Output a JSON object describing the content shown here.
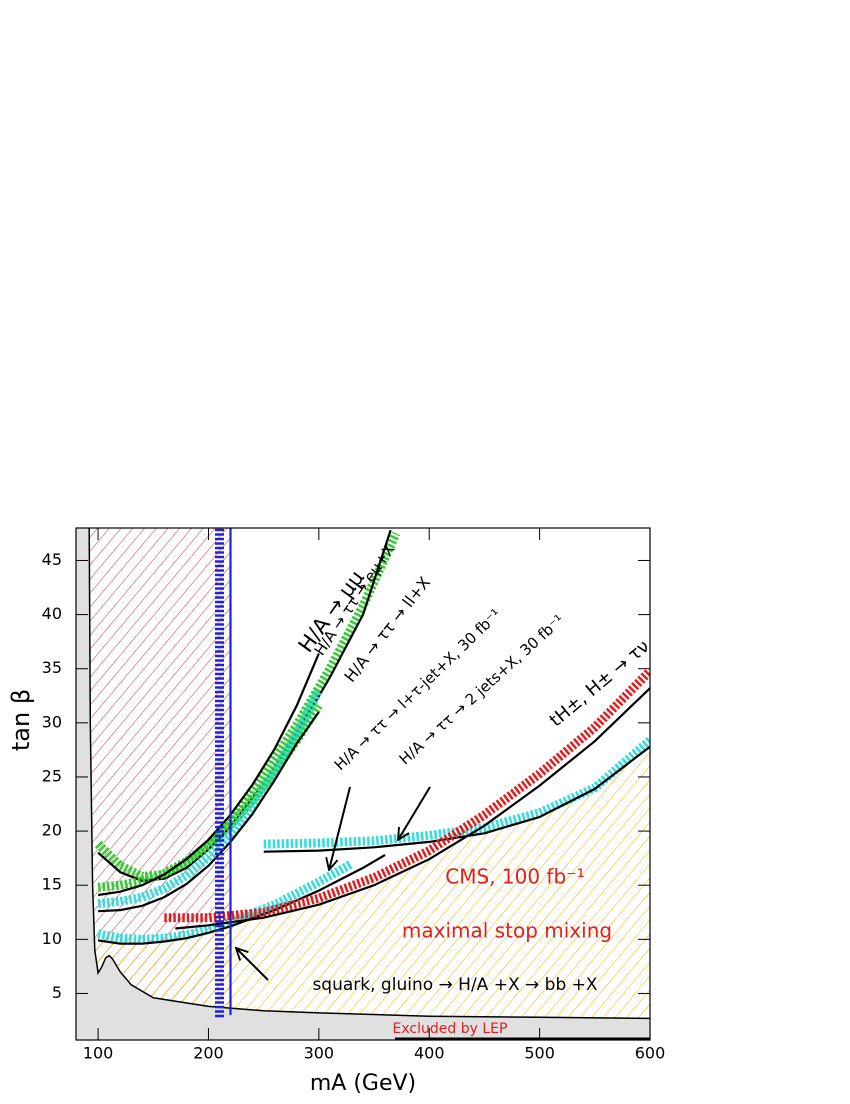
{
  "chart_data": {
    "type": "line",
    "x_label": "mA (GeV)",
    "y_label": "tan β",
    "xlim": [
      80,
      600
    ],
    "ylim": [
      0.7,
      48
    ],
    "xticks": [
      100,
      200,
      300,
      400,
      500,
      600
    ],
    "yticks": [
      5,
      10,
      15,
      20,
      25,
      30,
      35,
      40,
      45
    ],
    "excluded_region": {
      "label": "Excluded by LEP",
      "color": "#e0e0e0",
      "x": [
        92,
        93,
        95,
        97,
        100,
        103,
        107,
        110,
        113,
        120,
        130,
        150,
        200,
        250,
        300,
        400,
        500,
        600
      ],
      "y": [
        48,
        30,
        15,
        9,
        6.9,
        7.4,
        8.3,
        8.5,
        8.2,
        7,
        5.8,
        4.6,
        3.8,
        3.4,
        3.2,
        2.9,
        2.8,
        2.7
      ]
    },
    "hatch_colors": {
      "low_mass": "#cc3355",
      "discovery": "#f0b000"
    },
    "series": [
      {
        "color": "#33cc33",
        "style": "band",
        "x": [
          100,
          120,
          140,
          160,
          180,
          200,
          220,
          250,
          280,
          310,
          340,
          370
        ],
        "y": [
          18.8,
          16.8,
          15.8,
          16,
          17,
          18.8,
          21,
          25.2,
          29.8,
          35,
          40.8,
          47.5
        ]
      },
      {
        "color": "#000000",
        "style": "line",
        "x": [
          100,
          120,
          140,
          160,
          180,
          200,
          220,
          250,
          280,
          310,
          340,
          365
        ],
        "y": [
          18,
          16.2,
          15.4,
          15.6,
          16.6,
          18.3,
          20.4,
          24.4,
          29,
          34.2,
          40,
          47.8
        ]
      },
      {
        "color": "#33cc33",
        "style": "band",
        "x": [
          100,
          120,
          140,
          160,
          180,
          200,
          220,
          240,
          260,
          280,
          300
        ],
        "y": [
          14.8,
          15,
          15.4,
          16.1,
          17.2,
          18.7,
          20.6,
          22.9,
          25.5,
          28.4,
          31.6
        ]
      },
      {
        "color": "#33dddd",
        "style": "band",
        "x": [
          100,
          120,
          140,
          160,
          180,
          200,
          220,
          240,
          260,
          280,
          300
        ],
        "y": [
          13.3,
          13.5,
          13.9,
          14.7,
          15.9,
          17.6,
          19.7,
          22.3,
          25.4,
          29,
          33
        ]
      },
      {
        "color": "#000000",
        "style": "line",
        "x": [
          100,
          120,
          140,
          160,
          180,
          200,
          220,
          240,
          260,
          280,
          300
        ],
        "y": [
          14.1,
          14.4,
          15,
          16,
          17.4,
          19.2,
          21.5,
          24.3,
          27.6,
          31.6,
          36.4
        ]
      },
      {
        "color": "#000000",
        "style": "line",
        "x": [
          100,
          120,
          140,
          160,
          180,
          200,
          220,
          240,
          260,
          280,
          300
        ],
        "y": [
          12.6,
          12.7,
          13.1,
          13.9,
          15.1,
          16.8,
          19,
          21.6,
          24.7,
          28.1,
          31
        ]
      },
      {
        "color": "#33dddd",
        "style": "band",
        "x": [
          100,
          120,
          140,
          160,
          180,
          200,
          220,
          260,
          300,
          330
        ],
        "y": [
          10.5,
          10.1,
          10,
          10.1,
          10.4,
          10.9,
          11.6,
          13.2,
          15.3,
          17
        ]
      },
      {
        "color": "#000000",
        "style": "line",
        "x": [
          100,
          120,
          140,
          160,
          180,
          200,
          220,
          260,
          300,
          340,
          360
        ],
        "y": [
          9.9,
          9.6,
          9.6,
          9.8,
          10.1,
          10.6,
          11.2,
          12.7,
          14.5,
          16.6,
          17.8
        ]
      },
      {
        "color": "#33dddd",
        "style": "band",
        "x": [
          250,
          300,
          350,
          400,
          450,
          500,
          550,
          600
        ],
        "y": [
          18.8,
          18.9,
          19.1,
          19.6,
          20.3,
          21.7,
          24,
          28.4
        ]
      },
      {
        "color": "#000000",
        "style": "line",
        "x": [
          250,
          300,
          350,
          400,
          450,
          500,
          550,
          600
        ],
        "y": [
          18.1,
          18.2,
          18.5,
          19,
          19.8,
          21.3,
          23.9,
          27.8
        ]
      },
      {
        "color": "#e02020",
        "style": "band",
        "x": [
          160,
          200,
          250,
          300,
          350,
          400,
          450,
          500,
          550,
          600
        ],
        "y": [
          12,
          12,
          12.5,
          13.8,
          15.7,
          18.2,
          21.5,
          25.3,
          29.6,
          34.8
        ]
      },
      {
        "color": "#000000",
        "style": "line",
        "x": [
          170,
          200,
          250,
          300,
          350,
          400,
          450,
          500,
          550,
          600
        ],
        "y": [
          11,
          11.3,
          12,
          13.2,
          15,
          17.4,
          20.5,
          24.2,
          28.3,
          33.2
        ]
      },
      {
        "color": "#2020dd",
        "style": "band",
        "x": [
          210,
          210
        ],
        "y": [
          2.8,
          48
        ]
      },
      {
        "color": "#2020dd",
        "style": "line",
        "x": [
          220,
          220
        ],
        "y": [
          3,
          48
        ]
      }
    ],
    "annotations": [
      {
        "text": "H/A → μμ",
        "color": "#000000"
      },
      {
        "text": "H/A → ττ → eμ+X",
        "color": "#000000"
      },
      {
        "text": "H/A → ττ → ll+X",
        "color": "#000000"
      },
      {
        "text": "H/A → ττ → l+τ-jet+X, 30 fb⁻¹",
        "color": "#000000"
      },
      {
        "text": "H/A → ττ → 2 jets+X, 30 fb⁻¹",
        "color": "#000000"
      },
      {
        "text": "tH±, H± → τν",
        "color": "#000000"
      },
      {
        "text": "CMS, 100 fb⁻¹",
        "color": "#e02020"
      },
      {
        "text": "maximal stop mixing",
        "color": "#e02020"
      },
      {
        "text": "squark, gluino → H/A +X → bb +X",
        "color": "#000000"
      }
    ]
  }
}
